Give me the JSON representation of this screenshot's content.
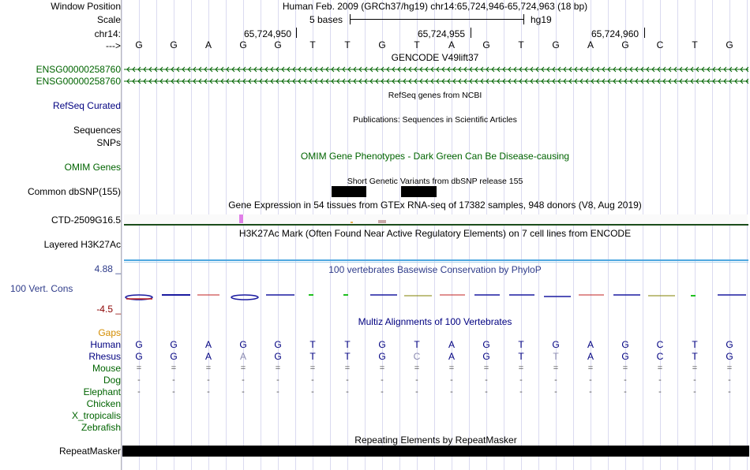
{
  "header": {
    "window_position_label": "Window Position",
    "window_position_value": "Human Feb. 2009 (GRCh37/hg19)   chr14:65,724,946-65,724,963 (18 bp)",
    "scale_label": "Scale",
    "scale_text": "5 bases",
    "scale_assembly": "hg19",
    "chrom_label": "chr14:",
    "coord_ticks": [
      "65,724,950",
      "65,724,955",
      "65,724,960"
    ],
    "strand_label": "--->"
  },
  "sequence": [
    "G",
    "G",
    "A",
    "G",
    "G",
    "T",
    "T",
    "G",
    "T",
    "A",
    "G",
    "T",
    "G",
    "A",
    "G",
    "C",
    "T",
    "G"
  ],
  "tracks": {
    "gencode_title": "GENCODE V49lift37",
    "gencode_items": [
      "ENSG00000258760",
      "ENSG00000258760"
    ],
    "refseq_label": "RefSeq Curated",
    "refseq_title": "RefSeq genes from NCBI",
    "sequences_label": "Sequences",
    "publications_title": "Publications: Sequences in Scientific Articles",
    "snps_label": "SNPs",
    "omim_title": "OMIM Gene Phenotypes - Dark Green Can Be Disease-causing",
    "omim_label": "OMIM Genes",
    "dbsnp_title": "Short Genetic Variants from dbSNP release 155",
    "dbsnp_label": "Common dbSNP(155)",
    "gtex_title": "Gene Expression in 54 tissues from GTEx RNA-seq of 17382 samples, 948 donors (V8, Aug 2019)",
    "gtex_label": "CTD-2509G16.5",
    "h3k27ac_title": "H3K27Ac Mark (Often Found Near Active Regulatory Elements) on 7 cell lines from ENCODE",
    "h3k27ac_label": "Layered H3K27Ac",
    "phylop_max": "4.88 _",
    "phylop_title": "100 vertebrates Basewise Conservation by PhyloP",
    "phylop_label": "100 Vert. Cons",
    "phylop_min": "-4.5 _",
    "multiz_title": "Multiz Alignments of 100 Vertebrates",
    "gaps_label": "Gaps",
    "repeat_title": "Repeating Elements by RepeatMasker",
    "repeat_label": "RepeatMasker"
  },
  "species": [
    {
      "name": "Human",
      "color": "#000080",
      "bases": [
        "G",
        "G",
        "A",
        "G",
        "G",
        "T",
        "T",
        "G",
        "T",
        "A",
        "G",
        "T",
        "G",
        "A",
        "G",
        "C",
        "T",
        "G"
      ]
    },
    {
      "name": "Rhesus",
      "color": "#000080",
      "bases": [
        "G",
        "G",
        "A",
        "A",
        "G",
        "T",
        "T",
        "G",
        "C",
        "A",
        "G",
        "T",
        "T",
        "A",
        "G",
        "C",
        "T",
        "G"
      ],
      "faded": [
        3,
        8,
        12
      ]
    },
    {
      "name": "Mouse",
      "color": "#006400",
      "bases": [
        "=",
        "=",
        "=",
        "=",
        "=",
        "=",
        "=",
        "=",
        "=",
        "=",
        "=",
        "=",
        "=",
        "=",
        "=",
        "=",
        "=",
        "="
      ]
    },
    {
      "name": "Dog",
      "color": "#006400",
      "bases": [
        "-",
        "-",
        "-",
        "-",
        "-",
        "-",
        "-",
        "-",
        "-",
        "-",
        "-",
        "-",
        "-",
        "-",
        "-",
        "-",
        "-",
        "-"
      ]
    },
    {
      "name": "Elephant",
      "color": "#006400",
      "bases": [
        "-",
        "-",
        "-",
        "-",
        "-",
        "-",
        "-",
        "-",
        "-",
        "-",
        "-",
        "-",
        "-",
        "-",
        "-",
        "-",
        "-",
        "-"
      ]
    },
    {
      "name": "Chicken",
      "color": "#006400",
      "bases": []
    },
    {
      "name": "X_tropicalis",
      "color": "#006400",
      "bases": []
    },
    {
      "name": "Zebrafish",
      "color": "#006400",
      "bases": []
    }
  ],
  "colors": {
    "gencode": "#006400",
    "refseq": "#000080",
    "omim": "#006400",
    "phylop_label": "#2f3c8a",
    "phylop_min": "#8b0000",
    "gaps": "#d38c00",
    "h3k27ac_line": "#4fa8e0",
    "gtex_bar": "#e080e8"
  }
}
